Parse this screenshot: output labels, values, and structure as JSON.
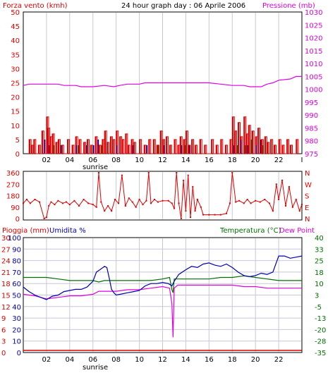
{
  "header": {
    "left": "Forza vento (kmh)",
    "title": "24 hour graph day : 06 Aprile 2006",
    "right": "Pressione (mb)"
  },
  "colors": {
    "red": "#e00000",
    "magenta": "#e000e0",
    "blue": "#0000b0",
    "green": "#007000",
    "grid": "#c8c8d8",
    "axis": "#000000",
    "frame": "#000000"
  },
  "chart_data": [
    {
      "type": "bar",
      "name_hint": "wind",
      "left_axis": {
        "label": "Forza vento (kmh)",
        "ticks": [
          "0",
          "5",
          "10",
          "15",
          "20",
          "25",
          "30",
          "35",
          "40",
          "45",
          "50"
        ],
        "range": [
          0,
          50
        ],
        "color": "#e00000"
      },
      "right_axis": {
        "label": "Pressione (mb)",
        "ticks": [
          "975",
          "980",
          "985",
          "990",
          "995",
          "1000",
          "1005",
          "1010",
          "1015",
          "1020",
          "1025",
          "1030"
        ],
        "range": [
          975,
          1030
        ],
        "color": "#e000e0"
      },
      "x_ticks": [
        "02",
        "04",
        "06",
        "08",
        "10",
        "12",
        "14",
        "16",
        "18",
        "20",
        "22",
        "I"
      ],
      "x_marker": "sunrise",
      "pressure": [
        [
          0.0,
          1001.5
        ],
        [
          0.5,
          1002
        ],
        [
          1.0,
          1002
        ],
        [
          2.0,
          1002
        ],
        [
          3.0,
          1002
        ],
        [
          3.5,
          1001.5
        ],
        [
          4.5,
          1001.5
        ],
        [
          5.0,
          1001
        ],
        [
          6.0,
          1001
        ],
        [
          7.0,
          1001.5
        ],
        [
          7.8,
          1001
        ],
        [
          8.3,
          1001.5
        ],
        [
          9.0,
          1002
        ],
        [
          10.0,
          1002
        ],
        [
          10.5,
          1002.5
        ],
        [
          12.0,
          1002.5
        ],
        [
          13.0,
          1002.5
        ],
        [
          14.0,
          1002.5
        ],
        [
          15.0,
          1002.5
        ],
        [
          16.0,
          1002.5
        ],
        [
          17.0,
          1002
        ],
        [
          18.0,
          1001.5
        ],
        [
          19.0,
          1001.5
        ],
        [
          19.5,
          1001
        ],
        [
          20.5,
          1001
        ],
        [
          21.0,
          1002
        ],
        [
          21.5,
          1002.5
        ],
        [
          22.0,
          1003.5
        ],
        [
          23.0,
          1004
        ],
        [
          23.5,
          1005
        ],
        [
          24.0,
          1005
        ]
      ],
      "wind_red": [
        [
          0.5,
          5
        ],
        [
          0.7,
          3
        ],
        [
          0.9,
          5
        ],
        [
          1.3,
          3
        ],
        [
          1.6,
          8
        ],
        [
          2.0,
          13
        ],
        [
          2.1,
          9
        ],
        [
          2.3,
          6
        ],
        [
          2.5,
          7
        ],
        [
          2.8,
          4
        ],
        [
          3.0,
          5
        ],
        [
          3.3,
          3
        ],
        [
          3.8,
          5
        ],
        [
          4.2,
          3
        ],
        [
          4.5,
          6
        ],
        [
          4.8,
          5
        ],
        [
          5.2,
          4
        ],
        [
          5.5,
          5
        ],
        [
          5.8,
          3
        ],
        [
          6.2,
          6
        ],
        [
          6.5,
          3
        ],
        [
          6.8,
          5
        ],
        [
          7.0,
          8
        ],
        [
          7.2,
          4
        ],
        [
          7.5,
          6
        ],
        [
          7.7,
          5
        ],
        [
          8.0,
          8
        ],
        [
          8.3,
          6
        ],
        [
          8.5,
          5
        ],
        [
          8.8,
          7
        ],
        [
          9.0,
          3
        ],
        [
          9.3,
          5
        ],
        [
          9.5,
          4
        ],
        [
          10.0,
          5
        ],
        [
          10.4,
          3
        ],
        [
          10.8,
          5
        ],
        [
          11.2,
          5
        ],
        [
          11.5,
          3
        ],
        [
          11.8,
          8
        ],
        [
          12.0,
          5
        ],
        [
          12.3,
          6
        ],
        [
          12.6,
          3
        ],
        [
          13.0,
          5
        ],
        [
          13.3,
          3
        ],
        [
          13.5,
          6
        ],
        [
          13.8,
          5
        ],
        [
          14.0,
          8
        ],
        [
          14.2,
          3
        ],
        [
          14.5,
          5
        ],
        [
          14.8,
          3
        ],
        [
          15.2,
          5
        ],
        [
          15.6,
          3
        ],
        [
          16.2,
          5
        ],
        [
          16.6,
          3
        ],
        [
          17.0,
          5
        ],
        [
          17.4,
          3
        ],
        [
          17.8,
          5
        ],
        [
          18.0,
          13
        ],
        [
          18.2,
          8
        ],
        [
          18.5,
          11
        ],
        [
          18.7,
          6
        ],
        [
          19.0,
          13
        ],
        [
          19.2,
          7
        ],
        [
          19.4,
          10
        ],
        [
          19.7,
          8
        ],
        [
          20.0,
          6
        ],
        [
          20.2,
          9
        ],
        [
          20.5,
          5
        ],
        [
          20.8,
          6
        ],
        [
          21.0,
          4
        ],
        [
          21.3,
          5
        ],
        [
          21.6,
          3
        ],
        [
          22.0,
          5
        ],
        [
          22.3,
          3
        ],
        [
          22.7,
          5
        ],
        [
          23.0,
          3
        ],
        [
          23.5,
          5
        ]
      ],
      "wind_blue": [
        [
          1.8,
          5
        ],
        [
          2.2,
          3
        ],
        [
          3.2,
          3
        ],
        [
          4.5,
          3
        ],
        [
          5.4,
          3
        ],
        [
          6.0,
          3
        ],
        [
          6.4,
          5
        ],
        [
          8.0,
          3
        ],
        [
          9.4,
          3
        ],
        [
          10.6,
          3
        ],
        [
          12.1,
          3
        ],
        [
          13.6,
          3
        ],
        [
          14.3,
          3
        ],
        [
          18.1,
          3
        ],
        [
          18.7,
          5
        ],
        [
          19.3,
          3
        ],
        [
          20.0,
          3
        ],
        [
          20.4,
          5
        ]
      ],
      "wind_green": [
        [
          2.6,
          3
        ],
        [
          4.7,
          3
        ],
        [
          6.7,
          3
        ],
        [
          11.6,
          3
        ],
        [
          13.9,
          3
        ],
        [
          18.4,
          3
        ],
        [
          19.1,
          3
        ],
        [
          19.6,
          5
        ],
        [
          20.6,
          3
        ]
      ]
    },
    {
      "type": "line",
      "name_hint": "direction",
      "left_ticks": [
        "0",
        "90",
        "180",
        "270",
        "360"
      ],
      "right_ticks": [
        "N",
        "W",
        "S",
        "E",
        "N"
      ],
      "range": [
        0,
        360
      ],
      "values": [
        [
          0.0,
          120
        ],
        [
          0.3,
          150
        ],
        [
          0.6,
          120
        ],
        [
          1.0,
          150
        ],
        [
          1.4,
          130
        ],
        [
          1.8,
          0
        ],
        [
          2.0,
          10
        ],
        [
          2.2,
          100
        ],
        [
          2.4,
          130
        ],
        [
          2.7,
          110
        ],
        [
          3.0,
          140
        ],
        [
          3.4,
          120
        ],
        [
          3.7,
          130
        ],
        [
          4.0,
          110
        ],
        [
          4.4,
          140
        ],
        [
          4.8,
          100
        ],
        [
          5.2,
          150
        ],
        [
          5.6,
          120
        ],
        [
          6.0,
          110
        ],
        [
          6.3,
          90
        ],
        [
          6.5,
          360
        ],
        [
          6.7,
          130
        ],
        [
          7.0,
          60
        ],
        [
          7.3,
          100
        ],
        [
          7.6,
          60
        ],
        [
          7.9,
          150
        ],
        [
          8.2,
          120
        ],
        [
          8.5,
          340
        ],
        [
          8.8,
          100
        ],
        [
          9.1,
          160
        ],
        [
          9.4,
          130
        ],
        [
          9.7,
          90
        ],
        [
          10.0,
          150
        ],
        [
          10.3,
          110
        ],
        [
          10.6,
          140
        ],
        [
          10.8,
          360
        ],
        [
          11.0,
          120
        ],
        [
          11.3,
          150
        ],
        [
          11.6,
          130
        ],
        [
          12.0,
          140
        ],
        [
          12.5,
          140
        ],
        [
          12.8,
          120
        ],
        [
          13.0,
          80
        ],
        [
          13.2,
          360
        ],
        [
          13.4,
          120
        ],
        [
          13.6,
          0
        ],
        [
          13.8,
          300
        ],
        [
          14.0,
          60
        ],
        [
          14.2,
          340
        ],
        [
          14.4,
          10
        ],
        [
          14.6,
          250
        ],
        [
          14.8,
          60
        ],
        [
          15.0,
          150
        ],
        [
          15.3,
          90
        ],
        [
          15.5,
          30
        ],
        [
          16.0,
          30
        ],
        [
          16.5,
          30
        ],
        [
          17.0,
          30
        ],
        [
          17.5,
          40
        ],
        [
          17.8,
          120
        ],
        [
          18.0,
          360
        ],
        [
          18.3,
          130
        ],
        [
          18.6,
          140
        ],
        [
          19.0,
          120
        ],
        [
          19.3,
          150
        ],
        [
          19.6,
          120
        ],
        [
          20.0,
          140
        ],
        [
          20.4,
          130
        ],
        [
          20.8,
          150
        ],
        [
          21.2,
          120
        ],
        [
          21.5,
          60
        ],
        [
          21.8,
          270
        ],
        [
          22.0,
          150
        ],
        [
          22.3,
          300
        ],
        [
          22.6,
          100
        ],
        [
          22.9,
          250
        ],
        [
          23.2,
          90
        ],
        [
          23.5,
          150
        ],
        [
          23.8,
          60
        ],
        [
          24.0,
          110
        ]
      ]
    },
    {
      "type": "line",
      "name_hint": "rain-humidity-temperature",
      "left_labels": {
        "rain": "Pioggia (mm)",
        "humidity": "Umidita %",
        "temperature": "Temperatura (°C)",
        "dewpoint": "Dew Point"
      },
      "rain_ticks": [
        "0",
        "3",
        "6",
        "9",
        "12",
        "15",
        "18",
        "21",
        "24",
        "27",
        "30"
      ],
      "humidity_ticks": [
        "0",
        "10",
        "20",
        "30",
        "40",
        "50",
        "60",
        "70",
        "80",
        "90",
        "100"
      ],
      "temp_ticks": [
        "-35",
        "-28",
        "-20",
        "-13",
        "-5",
        "3",
        "10",
        "18",
        "25",
        "33",
        "40"
      ],
      "x_ticks": [
        "02",
        "04",
        "06",
        "08",
        "10",
        "12",
        "14",
        "16",
        "18",
        "20",
        "22"
      ],
      "x_marker": "sunrise",
      "temp_range": [
        -35,
        40
      ],
      "humidity": [
        [
          0.0,
          57
        ],
        [
          0.5,
          53
        ],
        [
          1.0,
          50
        ],
        [
          1.5,
          48
        ],
        [
          2.0,
          46
        ],
        [
          2.5,
          49
        ],
        [
          3.0,
          50
        ],
        [
          3.5,
          53
        ],
        [
          4.0,
          54
        ],
        [
          4.5,
          55
        ],
        [
          5.0,
          55
        ],
        [
          5.5,
          57
        ],
        [
          6.0,
          62
        ],
        [
          6.3,
          70
        ],
        [
          6.6,
          72
        ],
        [
          7.0,
          75
        ],
        [
          7.2,
          74
        ],
        [
          7.4,
          65
        ],
        [
          7.6,
          55
        ],
        [
          7.8,
          52
        ],
        [
          8.0,
          50
        ],
        [
          8.5,
          51
        ],
        [
          9.0,
          52
        ],
        [
          9.5,
          53
        ],
        [
          10.0,
          54
        ],
        [
          10.5,
          58
        ],
        [
          11.0,
          60
        ],
        [
          11.5,
          60
        ],
        [
          12.0,
          61
        ],
        [
          12.5,
          60
        ],
        [
          12.8,
          58
        ],
        [
          13.0,
          62
        ],
        [
          13.4,
          68
        ],
        [
          14.0,
          72
        ],
        [
          14.5,
          75
        ],
        [
          15.0,
          74
        ],
        [
          15.5,
          77
        ],
        [
          16.0,
          78
        ],
        [
          16.5,
          76
        ],
        [
          17.0,
          75
        ],
        [
          17.5,
          77
        ],
        [
          18.0,
          74
        ],
        [
          18.5,
          70
        ],
        [
          19.0,
          67
        ],
        [
          19.5,
          66
        ],
        [
          20.0,
          67
        ],
        [
          20.5,
          69
        ],
        [
          21.0,
          68
        ],
        [
          21.5,
          70
        ],
        [
          22.0,
          84
        ],
        [
          22.5,
          84
        ],
        [
          23.0,
          82
        ],
        [
          23.5,
          83
        ],
        [
          24.0,
          84
        ]
      ],
      "temperature": [
        [
          0.0,
          14
        ],
        [
          1.0,
          14
        ],
        [
          2.0,
          14
        ],
        [
          3.0,
          13
        ],
        [
          4.0,
          12
        ],
        [
          5.0,
          12
        ],
        [
          6.0,
          12
        ],
        [
          6.5,
          11
        ],
        [
          7.0,
          12
        ],
        [
          8.0,
          12
        ],
        [
          9.0,
          12
        ],
        [
          10.0,
          12
        ],
        [
          11.0,
          12
        ],
        [
          12.0,
          13
        ],
        [
          12.6,
          14
        ],
        [
          12.8,
          6
        ],
        [
          12.9,
          4
        ],
        [
          13.0,
          13
        ],
        [
          14.0,
          13
        ],
        [
          15.0,
          13
        ],
        [
          16.0,
          13
        ],
        [
          17.0,
          14
        ],
        [
          18.0,
          14
        ],
        [
          19.0,
          15
        ],
        [
          20.0,
          14
        ],
        [
          21.0,
          13
        ],
        [
          22.0,
          12
        ],
        [
          23.0,
          12
        ],
        [
          24.0,
          12
        ]
      ],
      "dewpoint": [
        [
          0.0,
          3
        ],
        [
          1.0,
          2
        ],
        [
          2.0,
          0
        ],
        [
          3.0,
          1
        ],
        [
          4.0,
          2
        ],
        [
          5.0,
          2
        ],
        [
          6.0,
          3
        ],
        [
          6.5,
          5
        ],
        [
          7.0,
          5
        ],
        [
          8.0,
          5
        ],
        [
          9.0,
          6
        ],
        [
          10.0,
          6
        ],
        [
          11.0,
          7
        ],
        [
          12.0,
          8
        ],
        [
          12.6,
          7
        ],
        [
          12.8,
          -3
        ],
        [
          12.9,
          -25
        ],
        [
          13.0,
          7
        ],
        [
          13.3,
          9
        ],
        [
          14.0,
          9
        ],
        [
          15.0,
          9
        ],
        [
          16.0,
          9
        ],
        [
          17.0,
          9
        ],
        [
          18.0,
          9
        ],
        [
          19.0,
          8
        ],
        [
          20.0,
          8
        ],
        [
          21.0,
          7
        ],
        [
          22.0,
          7
        ],
        [
          23.0,
          7
        ],
        [
          24.0,
          7
        ]
      ],
      "rain": [
        [
          0.0,
          0
        ],
        [
          24.0,
          0
        ]
      ]
    }
  ]
}
